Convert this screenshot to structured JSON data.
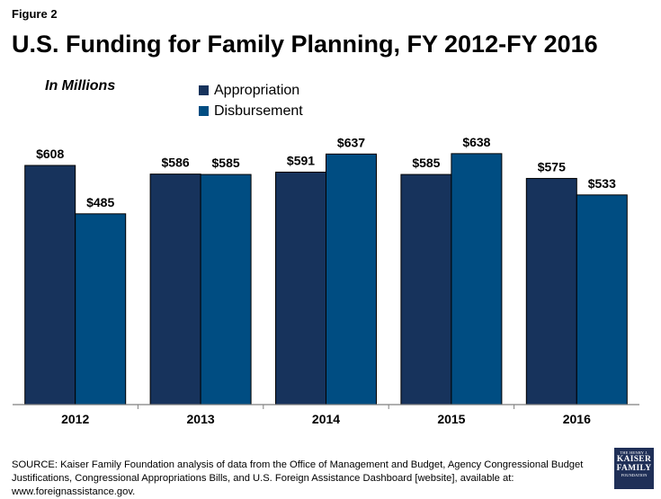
{
  "figure_label": "Figure 2",
  "colors": {
    "appropriation": "#17335c",
    "disbursement": "#004d82",
    "axis": "#7f7f7f"
  },
  "source": "SOURCE: Kaiser Family Foundation analysis of data from the Office of Management and Budget, Agency Congressional Budget Justifications, Congressional Appropriations Bills, and U.S. Foreign Assistance Dashboard [website], available at: www.foreignassistance.gov.",
  "logo": {
    "line1": "THE HENRY J.",
    "line2": "KAISER",
    "line3": "FAMILY",
    "line4": "FOUNDATION"
  },
  "chart_data": {
    "type": "bar",
    "title": "U.S. Funding for Family Planning, FY 2012-FY 2016",
    "units_label": "In Millions",
    "categories": [
      "2012",
      "2013",
      "2014",
      "2015",
      "2016"
    ],
    "series": [
      {
        "name": "Appropriation",
        "values": [
          608,
          586,
          591,
          585,
          575
        ],
        "labels": [
          "$608",
          "$586",
          "$591",
          "$585",
          "$575"
        ]
      },
      {
        "name": "Disbursement",
        "values": [
          485,
          585,
          637,
          638,
          533
        ],
        "labels": [
          "$485",
          "$585",
          "$637",
          "$638",
          "$533"
        ]
      }
    ],
    "ylim": [
      0,
      700
    ],
    "grid": false,
    "legend_position": "top-center"
  }
}
